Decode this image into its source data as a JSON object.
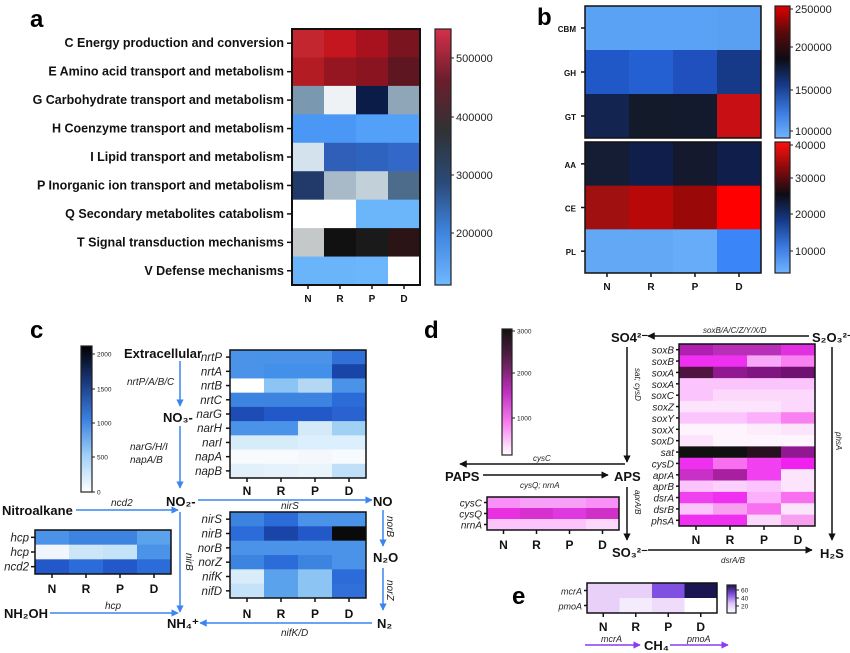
{
  "panels": {
    "a": "a",
    "b": "b",
    "c": "c",
    "d": "d",
    "e": "e"
  },
  "columns": [
    "N",
    "R",
    "P",
    "D"
  ],
  "chart_data": [
    {
      "id": "a",
      "type": "heatmap",
      "rows": [
        "C Energy production and conversion",
        "E Amino acid transport and metabolism",
        "G Carbohydrate transport and metabolism",
        "H Coenzyme transport and metabolism",
        "I Lipid transport and metabolism",
        "P Inorganic ion transport and metabolism",
        "Q Secondary metabolites catabolism",
        "T Signal transduction mechanisms",
        "V Defense mechanisms"
      ],
      "columns": [
        "N",
        "R",
        "P",
        "D"
      ],
      "cell_colors": [
        [
          "#c3262f",
          "#c4161f",
          "#a8121e",
          "#7a141e"
        ],
        [
          "#b41c24",
          "#951520",
          "#8a1520",
          "#5e1620"
        ],
        [
          "#7a98b0",
          "#eef2f5",
          "#0b1c48",
          "#8ea6b8"
        ],
        [
          "#4b97f5",
          "#4b97f5",
          "#52a0f8",
          "#52a0f8"
        ],
        [
          "#d4e2ee",
          "#2f5fb8",
          "#2f63c0",
          "#3468c8"
        ],
        [
          "#223a6a",
          "#a8bac8",
          "#c2d0da",
          "#4d6c8c"
        ],
        [
          "#ffffff",
          "#ffffff",
          "#6bb5fb",
          "#6bb5fb"
        ],
        [
          "#c4c8c8",
          "#111111",
          "#1a1a1a",
          "#2a1416"
        ],
        [
          "#6ab4fa",
          "#6ab4fa",
          "#6cb6fb",
          "#ffffff"
        ]
      ],
      "colorbar": {
        "ticks": [
          "500000",
          "400000",
          "300000",
          "200000"
        ],
        "colors": [
          "#d4304a",
          "#6a1e2c",
          "#303234",
          "#2a4a78",
          "#3f86e0",
          "#70b8ff"
        ]
      }
    },
    {
      "id": "b-top",
      "type": "heatmap",
      "rows": [
        "CBM",
        "GH",
        "GT"
      ],
      "columns": [
        "N",
        "R",
        "P",
        "D"
      ],
      "cell_colors": [
        [
          "#5aa2f4",
          "#5aa2f6",
          "#5aa2f6",
          "#5aa0f2"
        ],
        [
          "#2158c8",
          "#2560d2",
          "#2050be",
          "#163a88"
        ],
        [
          "#132451",
          "#131a2a",
          "#131a2e",
          "#c80f14"
        ]
      ],
      "colorbar": {
        "ticks": [
          "250000",
          "200000",
          "150000",
          "100000"
        ],
        "colors": [
          "#e00000",
          "#5a0a0a",
          "#0c0c14",
          "#163a88",
          "#3a7ae0",
          "#70b4ff"
        ]
      }
    },
    {
      "id": "b-bottom",
      "type": "heatmap",
      "rows": [
        "AA",
        "CE",
        "PL"
      ],
      "columns": [
        "N",
        "R",
        "P",
        "D"
      ],
      "cell_colors": [
        [
          "#151d35",
          "#0f1e4a",
          "#15192e",
          "#0f1e4a"
        ],
        [
          "#a01010",
          "#b80808",
          "#9a0808",
          "#ff0000"
        ],
        [
          "#62a8f4",
          "#62a8f4",
          "#66acf8",
          "#3a86f8"
        ]
      ],
      "colorbar": {
        "ticks": [
          "40000",
          "30000",
          "20000",
          "10000"
        ],
        "colors": [
          "#ff1010",
          "#8a0a0a",
          "#0c0c14",
          "#163a88",
          "#3a7ae0",
          "#70b4ff"
        ]
      }
    },
    {
      "id": "c-top",
      "type": "heatmap",
      "rows": [
        "nrtP",
        "nrtA",
        "nrtB",
        "nrtC",
        "narG",
        "narH",
        "narI",
        "napA",
        "napB"
      ],
      "columns": [
        "N",
        "R",
        "P",
        "D"
      ],
      "cell_colors": [
        [
          "#4a93e8",
          "#4a93e8",
          "#4a93e8",
          "#3070d8"
        ],
        [
          "#4a93e8",
          "#4390ea",
          "#4390ea",
          "#1a45a8"
        ],
        [
          "#ffffff",
          "#8cc4f4",
          "#b4d8f4",
          "#4a93e8"
        ],
        [
          "#3c84e0",
          "#3c84e0",
          "#3c84e0",
          "#2c6cd8"
        ],
        [
          "#1c4cb4",
          "#2358c8",
          "#2358c8",
          "#2a62d2"
        ],
        [
          "#4a93e8",
          "#4a93e8",
          "#d4eaf8",
          "#a0d0f4"
        ],
        [
          "#d6ecf8",
          "#d6ecf8",
          "#dcefff",
          "#dcefff"
        ],
        [
          "#f8fbfe",
          "#f8fbfe",
          "#f4f8fc",
          "#f8fbfe"
        ],
        [
          "#e2f0fa",
          "#e6f2fb",
          "#eaf4fb",
          "#bfe0f8"
        ]
      ],
      "colorbar": {
        "ticks": [
          "2000",
          "1500",
          "1000",
          "500",
          "0"
        ],
        "colors": [
          "#000000",
          "#1a3a80",
          "#3a80e0",
          "#a0d0f8",
          "#ffffff"
        ]
      }
    },
    {
      "id": "c-bottom",
      "type": "heatmap",
      "rows": [
        "nirS",
        "nirB",
        "norB",
        "norZ",
        "nifK",
        "nifD"
      ],
      "columns": [
        "N",
        "R",
        "P",
        "D"
      ],
      "cell_colors": [
        [
          "#3c84e0",
          "#2c6cd8",
          "#4a93e8",
          "#4a93e8"
        ],
        [
          "#2c6cd8",
          "#1a45a8",
          "#2358c8",
          "#0a0a0a"
        ],
        [
          "#4a93e8",
          "#4a93e8",
          "#4a93e8",
          "#4a93e8"
        ],
        [
          "#3c84e0",
          "#2c6cd8",
          "#3c84e0",
          "#4a93e8"
        ],
        [
          "#d8ecfa",
          "#5aa2ec",
          "#8cc4f4",
          "#2c6cd8"
        ],
        [
          "#c4e2f8",
          "#5aa2ec",
          "#8cc4f4",
          "#3070d8"
        ]
      ]
    },
    {
      "id": "c-small",
      "type": "heatmap",
      "rows": [
        "hcp",
        "hcp",
        "ncd2"
      ],
      "columns": [
        "N",
        "R",
        "P",
        "D"
      ],
      "cell_colors": [
        [
          "#4a93e8",
          "#3c84e0",
          "#3c84e0",
          "#5aa2ec"
        ],
        [
          "#f0f6fc",
          "#cce6f8",
          "#c4e2f8",
          "#4a93e8"
        ],
        [
          "#2358c8",
          "#2c6cd8",
          "#2358c8",
          "#2c6cd8"
        ]
      ]
    },
    {
      "id": "d-main",
      "type": "heatmap",
      "rows": [
        "soxB",
        "soxB",
        "soxA",
        "soxA",
        "soxC",
        "soxZ",
        "soxY",
        "soxX",
        "soxD",
        "sat",
        "cysD",
        "aprA",
        "aprB",
        "dsrA",
        "dsrB",
        "phsA"
      ],
      "columns": [
        "N",
        "R",
        "P",
        "D"
      ],
      "cell_colors": [
        [
          "#b020b0",
          "#b830b8",
          "#b830b8",
          "#e030e0"
        ],
        [
          "#f030f0",
          "#f030f0",
          "#f8a8f8",
          "#f880f0"
        ],
        [
          "#501440",
          "#901890",
          "#801480",
          "#701070"
        ],
        [
          "#fcc4fc",
          "#fcc4fc",
          "#fcc4fc",
          "#fcc4fc"
        ],
        [
          "#fcc4fc",
          "#fcd8fc",
          "#fcd8fc",
          "#fcd8fc"
        ],
        [
          "#fce4fc",
          "#fce4fc",
          "#fce4fc",
          "#fcd8fc"
        ],
        [
          "#fcc4fc",
          "#fcc4fc",
          "#fcb0fc",
          "#f880f0"
        ],
        [
          "#fef4fe",
          "#fef4fe",
          "#fcecfc",
          "#fce4fc"
        ],
        [
          "#fce4fc",
          "#fef4fe",
          "#fef4fe",
          "#fef4fe"
        ],
        [
          "#101010",
          "#101010",
          "#281020",
          "#901890"
        ],
        [
          "#f030f0",
          "#f870f0",
          "#f040f0",
          "#f020f0"
        ],
        [
          "#c830c8",
          "#a820a0",
          "#f040f0",
          "#fce4fc"
        ],
        [
          "#fcc4fc",
          "#fcd0fc",
          "#fcc4fc",
          "#fce4fc"
        ],
        [
          "#f040f0",
          "#f030f0",
          "#fcb0fc",
          "#f870f0"
        ],
        [
          "#fcc4fc",
          "#f8a0f0",
          "#f870f0",
          "#fce4fc"
        ],
        [
          "#f030f0",
          "#f030f0",
          "#fcd8fc",
          "#f8a0f0"
        ]
      ],
      "colorbar": {
        "ticks": [
          "3000",
          "2000",
          "1000"
        ],
        "colors": [
          "#101010",
          "#602050",
          "#c030c0",
          "#f880f0",
          "#ffffff"
        ]
      }
    },
    {
      "id": "d-small",
      "type": "heatmap",
      "rows": [
        "cysC",
        "cysQ",
        "nrnA"
      ],
      "columns": [
        "N",
        "R",
        "P",
        "D"
      ],
      "cell_colors": [
        [
          "#f890f8",
          "#f8a0f8",
          "#f8a0f8",
          "#f890f8"
        ],
        [
          "#e830e0",
          "#d830d0",
          "#e038e0",
          "#d030c8"
        ],
        [
          "#fcc4fc",
          "#fcc4fc",
          "#fcc4fc",
          "#fcd8fc"
        ]
      ]
    },
    {
      "id": "e",
      "type": "heatmap",
      "rows": [
        "mcrA",
        "pmoA"
      ],
      "columns": [
        "N",
        "R",
        "P",
        "D"
      ],
      "cell_colors": [
        [
          "#e8d0f8",
          "#e8d0f8",
          "#8050e0",
          "#1a1650"
        ],
        [
          "#e8d0f8",
          "#f4ecfc",
          "#eedcfa",
          "#ffffff"
        ]
      ],
      "colorbar": {
        "ticks": [
          "60",
          "40",
          "20"
        ],
        "colors": [
          "#1a1650",
          "#8050e0",
          "#e0c8f8",
          "#ffffff"
        ]
      }
    }
  ],
  "pathway_c": {
    "extracellular": "Extracellular",
    "nrt_genes": "nrtP/A/B/C",
    "no3": "NO₃-",
    "nar_genes_1": "narG/H/I",
    "nar_genes_2": "napA/B",
    "no2": "NO₂-",
    "nirS": "nirS",
    "no": "NO",
    "nitroalkane": "Nitroalkane",
    "ncd2": "ncd2",
    "nirB": "nirB",
    "norB": "norB",
    "n2o": "N₂O",
    "norZ": "norZ",
    "n2": "N₂",
    "nifKD": "nifK/D",
    "nh4": "NH₄⁺",
    "nh2oh": "NH₂OH",
    "hcp": "hcp",
    "arrow_color": "#3a86f0"
  },
  "pathway_d": {
    "so4": "SO4²⁻",
    "s2o3": "S₂O₃²⁻",
    "sox_genes": "soxB/A/C/Z/Y/X/D",
    "sat_cysD": "sat; cysD",
    "aps": "APS",
    "paps": "PAPS",
    "cysC": "cysC",
    "cysQ_nrnA": "cysQ; nrnA",
    "aprAB": "aprA/B",
    "so3": "SO₃²⁻",
    "dsrAB": "dsrA/B",
    "h2s": "H₂S",
    "phsA": "phsA",
    "arrow_color": "#111111"
  },
  "pathway_e": {
    "ch4": "CH₄",
    "mcrA": "mcrA",
    "pmoA": "pmoA",
    "arrow_color": "#8a3cf0"
  }
}
